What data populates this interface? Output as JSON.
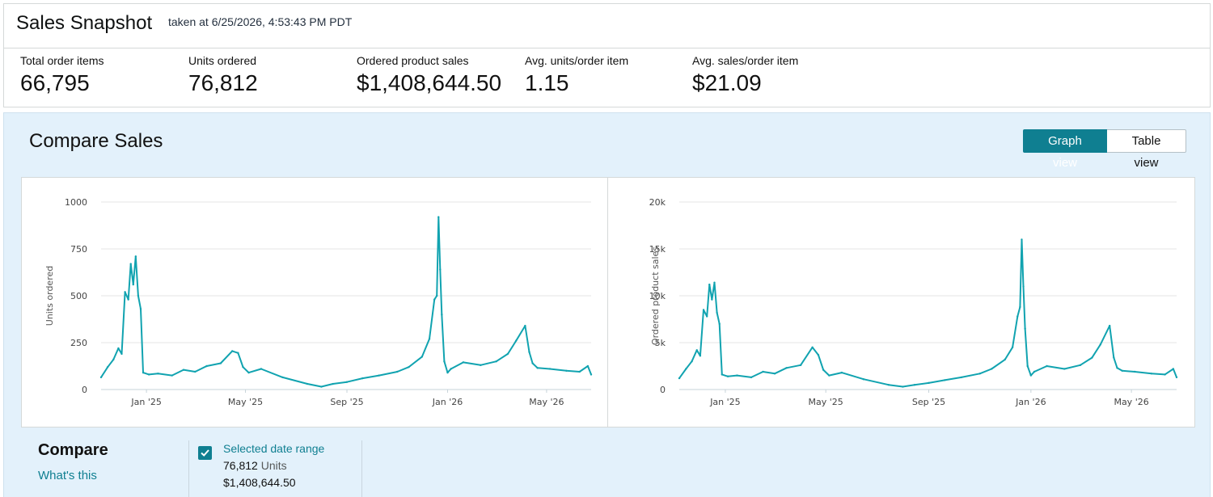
{
  "header": {
    "title": "Sales Snapshot",
    "taken_at": "taken at 6/25/2026, 4:53:43 PM PDT"
  },
  "metrics": [
    {
      "label": "Total order items",
      "value": "66,795"
    },
    {
      "label": "Units ordered",
      "value": "76,812"
    },
    {
      "label": "Ordered product sales",
      "value": "$1,408,644.50"
    },
    {
      "label": "Avg. units/order item",
      "value": "1.15"
    },
    {
      "label": "Avg. sales/order item",
      "value": "$21.09"
    }
  ],
  "compare": {
    "title": "Compare Sales",
    "graph_view_label": "Graph view",
    "table_view_label": "Table view",
    "footer_title": "Compare",
    "whats_this": "What's this",
    "series": {
      "name": "Selected date range",
      "units_value": "76,812",
      "units_suffix": "Units",
      "sales_value": "$1,408,644.50",
      "checked": true
    }
  },
  "colors": {
    "line": "#11a3b0",
    "accent": "#0f7f91",
    "panel_bg": "#e3f1fb"
  },
  "chart_data": [
    {
      "type": "line",
      "title": "",
      "xlabel": "",
      "ylabel": "Units ordered",
      "ylim": [
        0,
        1000
      ],
      "yticks": [
        0,
        250,
        500,
        750,
        1000
      ],
      "ytick_labels": [
        "0",
        "250",
        "500",
        "750",
        "1000"
      ],
      "xticks": [
        "2025-01-01",
        "2025-05-01",
        "2025-09-01",
        "2026-01-01",
        "2026-05-01"
      ],
      "xtick_labels": [
        "Jan '25",
        "May '25",
        "Sep '25",
        "Jan '26",
        "May '26"
      ],
      "xlim": [
        "2024-11-07",
        "2026-06-24"
      ],
      "grid": true,
      "series": [
        {
          "x": [
            "2024-11-07",
            "2024-11-15",
            "2024-11-22",
            "2024-11-28",
            "2024-12-02",
            "2024-12-06",
            "2024-12-10",
            "2024-12-13",
            "2024-12-16",
            "2024-12-19",
            "2024-12-22",
            "2024-12-25",
            "2024-12-28",
            "2025-01-04",
            "2025-01-15",
            "2025-02-01",
            "2025-02-15",
            "2025-03-01",
            "2025-03-15",
            "2025-04-01",
            "2025-04-15",
            "2025-04-22",
            "2025-04-28",
            "2025-05-05",
            "2025-05-20",
            "2025-06-15",
            "2025-07-15",
            "2025-08-01",
            "2025-08-15",
            "2025-09-01",
            "2025-09-20",
            "2025-10-10",
            "2025-11-01",
            "2025-11-15",
            "2025-12-01",
            "2025-12-10",
            "2025-12-16",
            "2025-12-19",
            "2025-12-21",
            "2025-12-23",
            "2025-12-25",
            "2025-12-28",
            "2026-01-01",
            "2026-01-05",
            "2026-01-20",
            "2026-02-10",
            "2026-03-01",
            "2026-03-15",
            "2026-03-25",
            "2026-04-05",
            "2026-04-10",
            "2026-04-14",
            "2026-04-20",
            "2026-05-05",
            "2026-05-25",
            "2026-06-10",
            "2026-06-20",
            "2026-06-24"
          ],
          "y": [
            65,
            120,
            160,
            220,
            190,
            520,
            480,
            670,
            560,
            710,
            500,
            430,
            90,
            80,
            85,
            75,
            105,
            95,
            125,
            140,
            205,
            195,
            120,
            90,
            110,
            65,
            30,
            15,
            30,
            40,
            60,
            75,
            95,
            120,
            175,
            270,
            480,
            500,
            920,
            640,
            400,
            150,
            90,
            110,
            145,
            130,
            150,
            190,
            260,
            340,
            200,
            140,
            115,
            110,
            100,
            95,
            125,
            80
          ]
        }
      ]
    },
    {
      "type": "line",
      "title": "",
      "xlabel": "",
      "ylabel": "Ordered product sales",
      "ylim": [
        0,
        20000
      ],
      "yticks": [
        0,
        5000,
        10000,
        15000,
        20000
      ],
      "ytick_labels": [
        "0",
        "5k",
        "10k",
        "15k",
        "20k"
      ],
      "xticks": [
        "2025-01-01",
        "2025-05-01",
        "2025-09-01",
        "2026-01-01",
        "2026-05-01"
      ],
      "xtick_labels": [
        "Jan '25",
        "May '25",
        "Sep '25",
        "Jan '26",
        "May '26"
      ],
      "xlim": [
        "2024-11-07",
        "2026-06-24"
      ],
      "grid": true,
      "series": [
        {
          "x": [
            "2024-11-07",
            "2024-11-15",
            "2024-11-22",
            "2024-11-28",
            "2024-12-02",
            "2024-12-06",
            "2024-12-10",
            "2024-12-13",
            "2024-12-16",
            "2024-12-19",
            "2024-12-22",
            "2024-12-25",
            "2024-12-28",
            "2025-01-04",
            "2025-01-15",
            "2025-02-01",
            "2025-02-15",
            "2025-03-01",
            "2025-03-15",
            "2025-04-01",
            "2025-04-15",
            "2025-04-22",
            "2025-04-28",
            "2025-05-05",
            "2025-05-20",
            "2025-06-15",
            "2025-07-15",
            "2025-08-01",
            "2025-08-15",
            "2025-09-01",
            "2025-09-20",
            "2025-10-10",
            "2025-11-01",
            "2025-11-15",
            "2025-12-01",
            "2025-12-10",
            "2025-12-16",
            "2025-12-19",
            "2025-12-21",
            "2025-12-23",
            "2025-12-25",
            "2025-12-28",
            "2026-01-01",
            "2026-01-05",
            "2026-01-20",
            "2026-02-10",
            "2026-03-01",
            "2026-03-15",
            "2026-03-25",
            "2026-04-05",
            "2026-04-10",
            "2026-04-14",
            "2026-04-20",
            "2026-05-05",
            "2026-05-25",
            "2026-06-10",
            "2026-06-20",
            "2026-06-24"
          ],
          "y": [
            1200,
            2200,
            3000,
            4200,
            3600,
            8500,
            7800,
            11200,
            9600,
            11400,
            8200,
            7000,
            1600,
            1400,
            1500,
            1300,
            1900,
            1700,
            2300,
            2600,
            4500,
            3700,
            2100,
            1500,
            1800,
            1100,
            500,
            300,
            500,
            700,
            1000,
            1300,
            1700,
            2200,
            3200,
            4500,
            7800,
            8800,
            16000,
            11000,
            6500,
            2500,
            1500,
            1900,
            2500,
            2200,
            2600,
            3400,
            4800,
            6800,
            3400,
            2300,
            2000,
            1900,
            1700,
            1600,
            2200,
            1300
          ]
        }
      ]
    }
  ]
}
